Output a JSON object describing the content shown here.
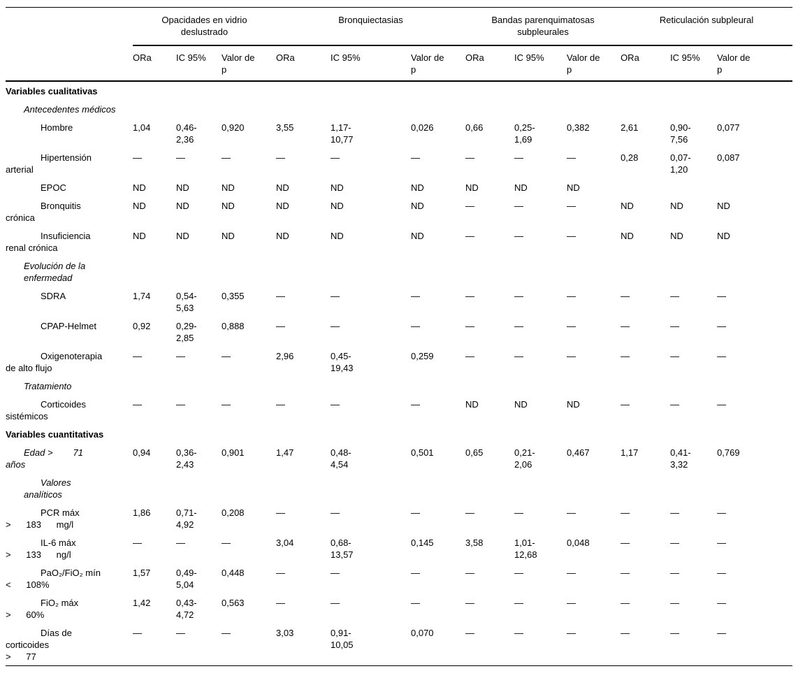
{
  "table": {
    "groups": [
      {
        "label": "Opacidades en vidrio\ndeslustrado"
      },
      {
        "label": "Bronquiectasias"
      },
      {
        "label": "Bandas parenquimatosas\nsubpleurales"
      },
      {
        "label": "Reticulación subpleural"
      }
    ],
    "subheaders": [
      "ORa",
      "IC 95%",
      "Valor de\np"
    ],
    "rows": [
      {
        "style": "bold",
        "lines": [
          {
            "t": "Variables cualitativas",
            "i": 0
          }
        ],
        "cells": [
          "",
          "",
          "",
          "",
          "",
          "",
          "",
          "",
          "",
          "",
          "",
          ""
        ]
      },
      {
        "style": "italic",
        "lines": [
          {
            "t": "Antecedentes médicos",
            "i": 1
          }
        ],
        "cells": [
          "",
          "",
          "",
          "",
          "",
          "",
          "",
          "",
          "",
          "",
          "",
          ""
        ]
      },
      {
        "style": "plain",
        "lines": [
          {
            "t": "Hombre",
            "i": 2
          }
        ],
        "cells": [
          "1,04",
          "0,46-\n2,36",
          "0,920",
          "3,55",
          "1,17-\n10,77",
          "0,026",
          "0,66",
          "0,25-\n1,69",
          "0,382",
          "2,61",
          "0,90-\n7,56",
          "0,077"
        ]
      },
      {
        "style": "plain",
        "lines": [
          {
            "t": "Hipertensión",
            "i": 2
          },
          {
            "t": "arterial",
            "i": 0
          }
        ],
        "cells": [
          "—",
          "—",
          "—",
          "—",
          "—",
          "—",
          "—",
          "—",
          "—",
          "0,28",
          "0,07-\n1,20",
          "0,087"
        ]
      },
      {
        "style": "plain",
        "lines": [
          {
            "t": "EPOC",
            "i": 2
          }
        ],
        "cells": [
          "ND",
          "ND",
          "ND",
          "ND",
          "ND",
          "ND",
          "ND",
          "ND",
          "ND",
          "",
          "",
          ""
        ]
      },
      {
        "style": "plain",
        "lines": [
          {
            "t": "Bronquitis",
            "i": 2
          },
          {
            "t": "crónica",
            "i": 0
          }
        ],
        "cells": [
          "ND",
          "ND",
          "ND",
          "ND",
          "ND",
          "ND",
          "—",
          "—",
          "—",
          "ND",
          "ND",
          "ND"
        ]
      },
      {
        "style": "plain",
        "lines": [
          {
            "t": "Insuficiencia",
            "i": 2
          },
          {
            "t": "renal crónica",
            "i": 0
          }
        ],
        "cells": [
          "ND",
          "ND",
          "ND",
          "ND",
          "ND",
          "ND",
          "—",
          "—",
          "—",
          "ND",
          "ND",
          "ND"
        ]
      },
      {
        "style": "italic",
        "lines": [
          {
            "t": "Evolución de la enfermedad",
            "i": 1
          }
        ],
        "cells": [
          "",
          "",
          "",
          "",
          "",
          "",
          "",
          "",
          "",
          "",
          "",
          ""
        ]
      },
      {
        "style": "plain",
        "lines": [
          {
            "t": "SDRA",
            "i": 2
          }
        ],
        "cells": [
          "1,74",
          "0,54-\n5,63",
          "0,355",
          "—",
          "—",
          "—",
          "—",
          "—",
          "—",
          "—",
          "—",
          "—"
        ]
      },
      {
        "style": "plain",
        "lines": [
          {
            "t": "CPAP-Helmet",
            "i": 2
          }
        ],
        "cells": [
          "0,92",
          "0,29-\n2,85",
          "0,888",
          "—",
          "—",
          "—",
          "—",
          "—",
          "—",
          "—",
          "—",
          "—"
        ]
      },
      {
        "style": "plain",
        "lines": [
          {
            "t": "Oxigenoterapia",
            "i": 2
          },
          {
            "t": "de alto flujo",
            "i": 0
          }
        ],
        "cells": [
          "—",
          "—",
          "—",
          "2,96",
          "0,45-\n19,43",
          "0,259",
          "—",
          "—",
          "—",
          "—",
          "—",
          "—"
        ]
      },
      {
        "style": "italic",
        "lines": [
          {
            "t": "Tratamiento",
            "i": 1
          }
        ],
        "cells": [
          "",
          "",
          "",
          "",
          "",
          "",
          "",
          "",
          "",
          "",
          "",
          ""
        ]
      },
      {
        "style": "plain",
        "lines": [
          {
            "t": "Corticoides",
            "i": 2
          },
          {
            "t": "sistémicos",
            "i": 0
          }
        ],
        "cells": [
          "—",
          "—",
          "—",
          "—",
          "—",
          "—",
          "ND",
          "ND",
          "ND",
          "—",
          "—",
          "—"
        ]
      },
      {
        "style": "bold",
        "lines": [
          {
            "t": "Variables cuantitativas",
            "i": 0
          }
        ],
        "cells": [
          "",
          "",
          "",
          "",
          "",
          "",
          "",
          "",
          "",
          "",
          "",
          ""
        ]
      },
      {
        "style": "italic",
        "lines": [
          {
            "t": "Edad >        71",
            "i": 1
          },
          {
            "t": "años",
            "i": 0
          }
        ],
        "cells": [
          "0,94",
          "0,36-\n2,43",
          "0,901",
          "1,47",
          "0,48-\n4,54",
          "0,501",
          "0,65",
          "0,21-\n2,06",
          "0,467",
          "1,17",
          "0,41-\n3,32",
          "0,769"
        ]
      },
      {
        "style": "italic",
        "lines": [
          {
            "t": "Valores",
            "i": 2
          },
          {
            "t": "analíticos",
            "i": 1
          }
        ],
        "cells": [
          "",
          "",
          "",
          "",
          "",
          "",
          "",
          "",
          "",
          "",
          "",
          ""
        ]
      },
      {
        "style": "plain",
        "lines": [
          {
            "t": "PCR máx",
            "i": 2
          },
          {
            "t": ">      183      mg/l",
            "i": 0
          }
        ],
        "cells": [
          "1,86",
          "0,71-\n4,92",
          "0,208",
          "—",
          "—",
          "—",
          "—",
          "—",
          "—",
          "—",
          "—",
          "—"
        ]
      },
      {
        "style": "plain",
        "lines": [
          {
            "t": "IL-6 máx",
            "i": 2
          },
          {
            "t": ">      133      ng/l",
            "i": 0
          }
        ],
        "cells": [
          "—",
          "—",
          "—",
          "3,04",
          "0,68-\n13,57",
          "0,145",
          "3,58",
          "1,01-\n12,68",
          "0,048",
          "—",
          "—",
          "—"
        ]
      },
      {
        "style": "plain",
        "lines": [
          {
            "t": "PaO₂/FiO₂ mín",
            "i": 2
          },
          {
            "t": "<      108%",
            "i": 0
          }
        ],
        "cells": [
          "1,57",
          "0,49-\n5,04",
          "0,448",
          "—",
          "—",
          "—",
          "—",
          "—",
          "—",
          "—",
          "—",
          "—"
        ]
      },
      {
        "style": "plain",
        "lines": [
          {
            "t": "FiO₂ máx",
            "i": 2
          },
          {
            "t": ">      60%",
            "i": 0
          }
        ],
        "cells": [
          "1,42",
          "0,43-\n4,72",
          "0,563",
          "—",
          "—",
          "—",
          "—",
          "—",
          "—",
          "—",
          "—",
          "—"
        ]
      },
      {
        "style": "plain",
        "lines": [
          {
            "t": "Días de",
            "i": 2
          },
          {
            "t": "corticoides",
            "i": 0
          },
          {
            "t": ">      77",
            "i": 0
          }
        ],
        "cells": [
          "—",
          "—",
          "—",
          "3,03",
          "0,91-\n10,05",
          "0,070",
          "—",
          "—",
          "—",
          "—",
          "—",
          "—"
        ]
      }
    ]
  }
}
